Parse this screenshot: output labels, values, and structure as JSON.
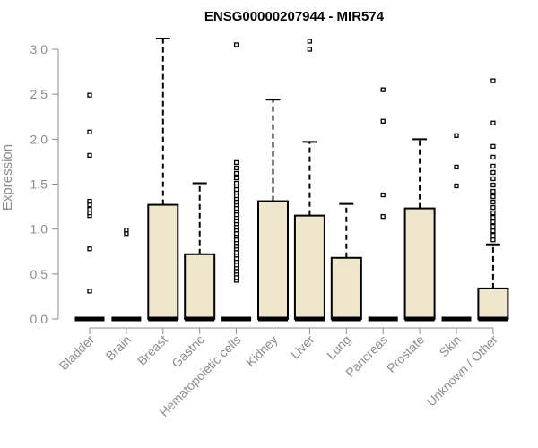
{
  "chart_data": {
    "type": "boxplot",
    "title": "ENSG00000207944 - MIR574",
    "ylabel": "Expression",
    "ylim": [
      0,
      3.0
    ],
    "yticks": [
      "0.0",
      "0.5",
      "1.0",
      "1.5",
      "2.0",
      "2.5",
      "3.0"
    ],
    "box_color": "#efe7cd",
    "categories": [
      "Bladder",
      "Brain",
      "Breast",
      "Gastric",
      "Hematopoietic cells",
      "Kidney",
      "Liver",
      "Lung",
      "Pancreas",
      "Prostate",
      "Skin",
      "Unknown / Other"
    ],
    "boxes": [
      {
        "q1": 0,
        "median": 0,
        "q3": 0,
        "whisker_low": 0,
        "whisker_high": 0,
        "outliers": [
          0.31,
          0.78,
          1.15,
          1.18,
          1.22,
          1.27,
          1.31,
          1.82,
          2.08,
          2.49
        ]
      },
      {
        "q1": 0,
        "median": 0,
        "q3": 0,
        "whisker_low": 0,
        "whisker_high": 0,
        "outliers": [
          0.95,
          0.99
        ]
      },
      {
        "q1": 0,
        "median": 0,
        "q3": 1.27,
        "whisker_low": 0,
        "whisker_high": 3.12,
        "outliers": []
      },
      {
        "q1": 0,
        "median": 0,
        "q3": 0.72,
        "whisker_low": 0,
        "whisker_high": 1.51,
        "outliers": []
      },
      {
        "q1": 0,
        "median": 0,
        "q3": 0,
        "whisker_low": 0,
        "whisker_high": 0,
        "outliers": [
          0.43,
          0.46,
          0.5,
          0.53,
          0.57,
          0.6,
          0.64,
          0.67,
          0.71,
          0.74,
          0.78,
          0.81,
          0.85,
          0.88,
          0.92,
          0.95,
          0.99,
          1.02,
          1.06,
          1.09,
          1.13,
          1.16,
          1.2,
          1.23,
          1.27,
          1.3,
          1.34,
          1.37,
          1.41,
          1.44,
          1.48,
          1.51,
          1.57,
          1.62,
          1.68,
          1.74,
          3.05
        ]
      },
      {
        "q1": 0,
        "median": 0,
        "q3": 1.31,
        "whisker_low": 0,
        "whisker_high": 2.44,
        "outliers": []
      },
      {
        "q1": 0,
        "median": 0,
        "q3": 1.15,
        "whisker_low": 0,
        "whisker_high": 1.97,
        "outliers": [
          3.0,
          3.09
        ]
      },
      {
        "q1": 0,
        "median": 0,
        "q3": 0.68,
        "whisker_low": 0,
        "whisker_high": 1.28,
        "outliers": []
      },
      {
        "q1": 0,
        "median": 0,
        "q3": 0,
        "whisker_low": 0,
        "whisker_high": 0,
        "outliers": [
          1.14,
          1.38,
          2.2,
          2.55
        ]
      },
      {
        "q1": 0,
        "median": 0,
        "q3": 1.23,
        "whisker_low": 0,
        "whisker_high": 2.0,
        "outliers": []
      },
      {
        "q1": 0,
        "median": 0,
        "q3": 0,
        "whisker_low": 0,
        "whisker_high": 0,
        "outliers": [
          1.48,
          1.69,
          2.04
        ]
      },
      {
        "q1": 0,
        "median": 0,
        "q3": 0.34,
        "whisker_low": 0,
        "whisker_high": 0.83,
        "outliers": [
          0.88,
          0.93,
          0.98,
          1.03,
          1.08,
          1.13,
          1.18,
          1.24,
          1.3,
          1.36,
          1.42,
          1.49,
          1.56,
          1.63,
          1.7,
          1.8,
          1.92,
          2.18,
          2.65
        ]
      }
    ]
  }
}
